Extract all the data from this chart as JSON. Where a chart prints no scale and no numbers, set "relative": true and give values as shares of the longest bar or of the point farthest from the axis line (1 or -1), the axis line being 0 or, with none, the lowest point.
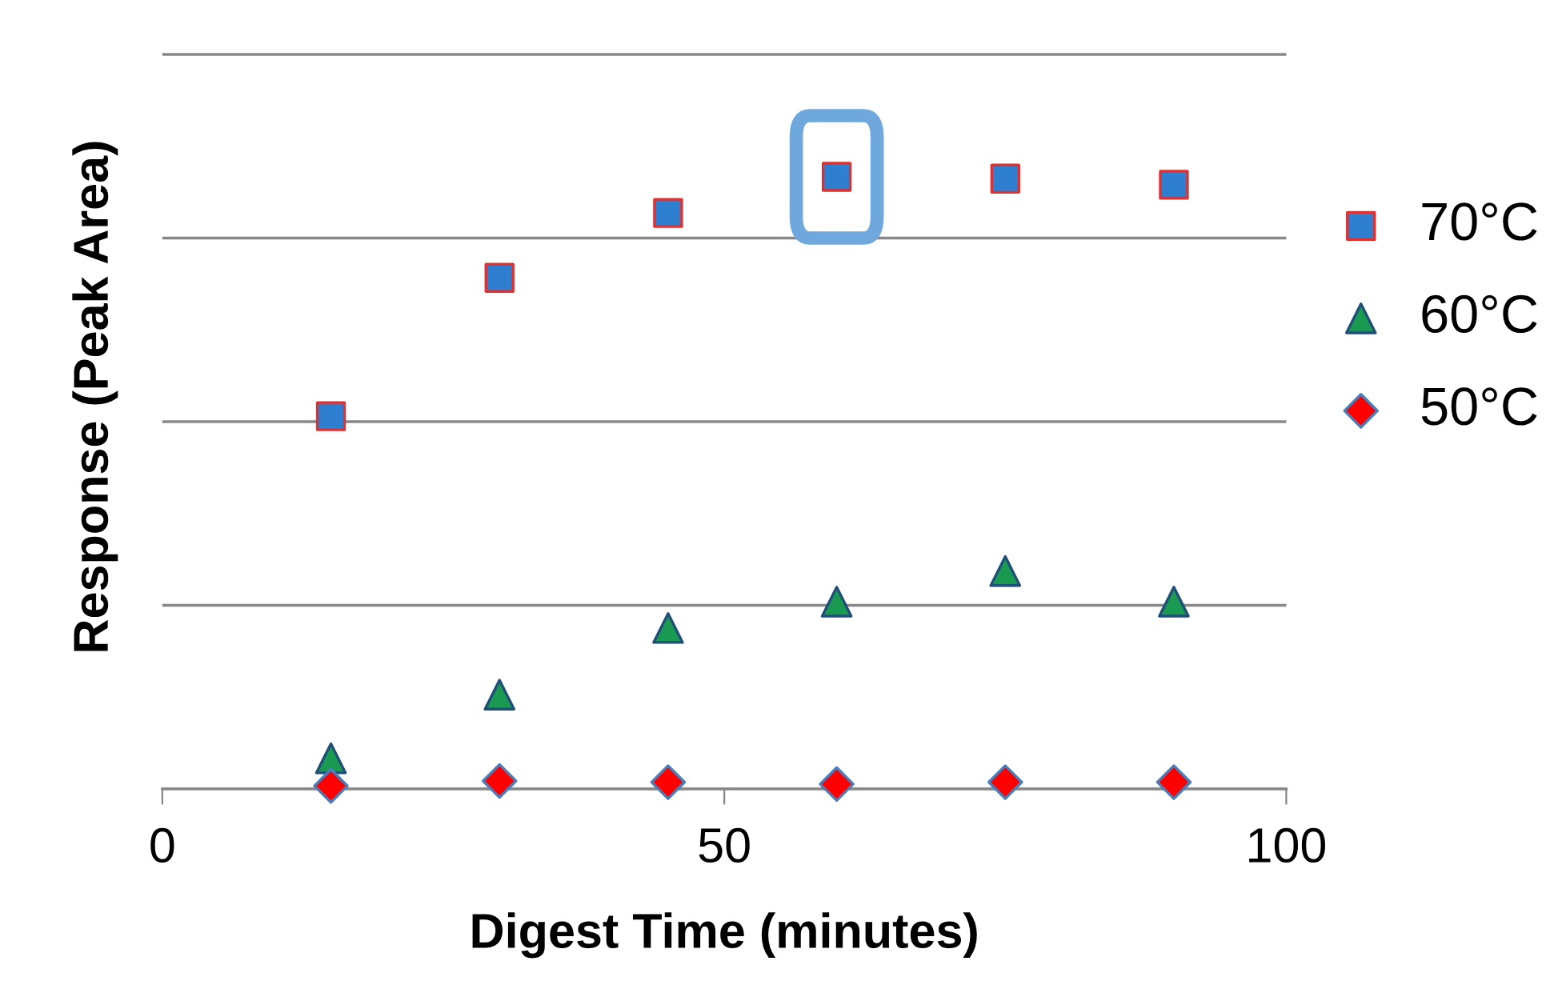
{
  "chart_data": {
    "type": "scatter",
    "relative": true,
    "xlabel": "Digest Time (minutes)",
    "ylabel": "Response (Peak Area)",
    "x": [
      15,
      30,
      45,
      60,
      75,
      90
    ],
    "xlim": [
      0,
      100
    ],
    "xticks": [
      0,
      50,
      100
    ],
    "grid": "y",
    "legend": "right",
    "series": [
      {
        "name": "70°C",
        "color": "#2e7fd0",
        "marker": "square",
        "values": [
          0.609,
          0.835,
          0.941,
          1,
          0.997,
          0.987
        ]
      },
      {
        "name": "60°C",
        "color": "#1a9a50",
        "marker": "triangle",
        "values": [
          0.05,
          0.154,
          0.263,
          0.306,
          0.356,
          0.306
        ]
      },
      {
        "name": "50°C",
        "color": "#ff0000",
        "marker": "diamond",
        "values": [
          0.005,
          0.013,
          0.011,
          0.008,
          0.011,
          0.011
        ]
      }
    ]
  }
}
